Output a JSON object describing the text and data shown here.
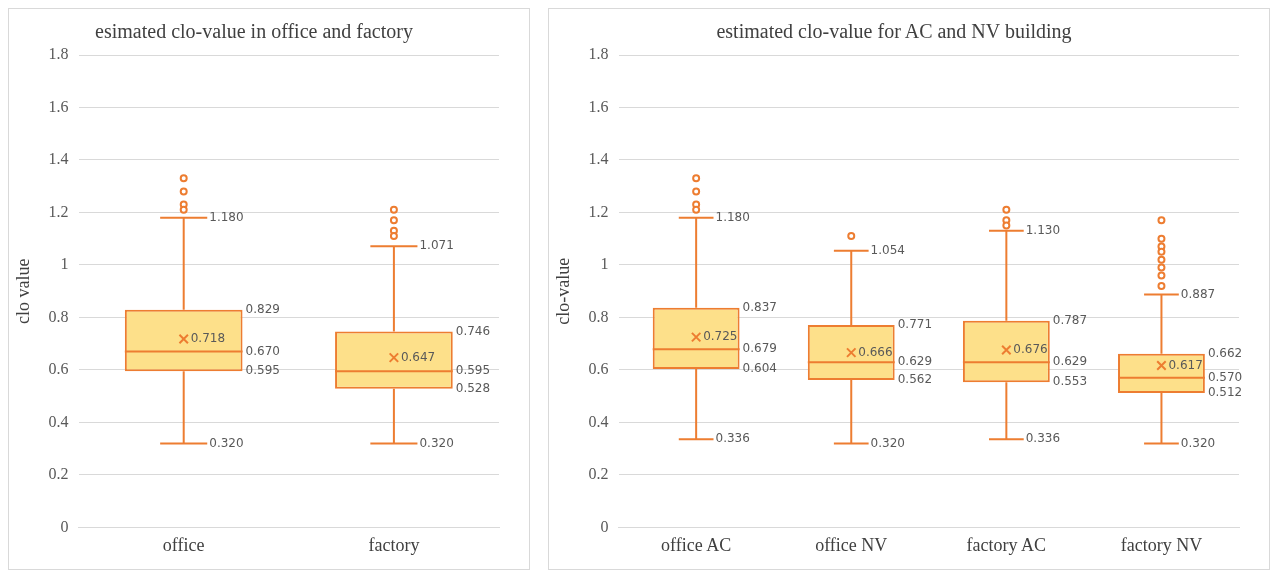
{
  "chart_data": [
    {
      "type": "box",
      "title": "esimated clo-value in office and factory",
      "ylabel": "clo value",
      "categories": [
        "office",
        "factory"
      ],
      "ylim": [
        0,
        1.8
      ],
      "yticks": [
        0,
        0.2,
        0.4,
        0.6,
        0.8,
        1,
        1.2,
        1.4,
        1.6,
        1.8
      ],
      "grid": "y",
      "data_labels": true,
      "series": [
        {
          "color": "#ed7d31",
          "boxes": [
            {
              "low": 0.32,
              "q1": 0.595,
              "median": 0.67,
              "q3": 0.829,
              "high": 1.18,
              "mean": 0.718,
              "outliers": [
                1.21,
                1.23,
                1.28,
                1.33
              ]
            },
            {
              "low": 0.32,
              "q1": 0.528,
              "median": 0.595,
              "q3": 0.746,
              "high": 1.071,
              "mean": 0.647,
              "outliers": [
                1.11,
                1.13,
                1.17,
                1.21
              ]
            }
          ],
          "value_labels": [
            [
              "0.320",
              "0.595",
              "0.670",
              "0.829",
              "1.180",
              "0.718"
            ],
            [
              "0.320",
              "0.528",
              "0.595",
              "0.746",
              "1.071",
              "0.647"
            ]
          ]
        }
      ]
    },
    {
      "type": "box",
      "title": "estimated clo-value for AC and NV building",
      "ylabel": "clo-value",
      "categories": [
        "office AC",
        "office NV",
        "factory AC",
        "factory NV"
      ],
      "ylim": [
        0,
        1.8
      ],
      "yticks": [
        0,
        0.2,
        0.4,
        0.6,
        0.8,
        1,
        1.2,
        1.4,
        1.6,
        1.8
      ],
      "grid": "y",
      "data_labels": true,
      "series": [
        {
          "color": "#ed7d31",
          "boxes": [
            {
              "low": 0.336,
              "q1": 0.604,
              "median": 0.679,
              "q3": 0.837,
              "high": 1.18,
              "mean": 0.725,
              "outliers": [
                1.21,
                1.23,
                1.28,
                1.33
              ]
            },
            {
              "low": 0.32,
              "q1": 0.562,
              "median": 0.629,
              "q3": 0.771,
              "high": 1.054,
              "mean": 0.666,
              "outliers": [
                1.11
              ]
            },
            {
              "low": 0.336,
              "q1": 0.553,
              "median": 0.629,
              "q3": 0.787,
              "high": 1.13,
              "mean": 0.676,
              "outliers": [
                1.15,
                1.17,
                1.21
              ]
            },
            {
              "low": 0.32,
              "q1": 0.512,
              "median": 0.57,
              "q3": 0.662,
              "high": 0.887,
              "mean": 0.617,
              "outliers": [
                0.92,
                0.96,
                0.99,
                1.02,
                1.05,
                1.07,
                1.1,
                1.17
              ]
            }
          ],
          "value_labels": [
            [
              "0.336",
              "0.604",
              "0.679",
              "0.837",
              "1.180",
              "0.725"
            ],
            [
              "0.320",
              "0.562",
              "0.629",
              "0.771",
              "1.054",
              "0.666"
            ],
            [
              "0.336",
              "0.553",
              "0.629",
              "0.787",
              "1.130",
              "0.676"
            ],
            [
              "0.320",
              "0.512",
              "0.570",
              "0.662",
              "0.887",
              "0.617"
            ]
          ]
        }
      ]
    }
  ]
}
